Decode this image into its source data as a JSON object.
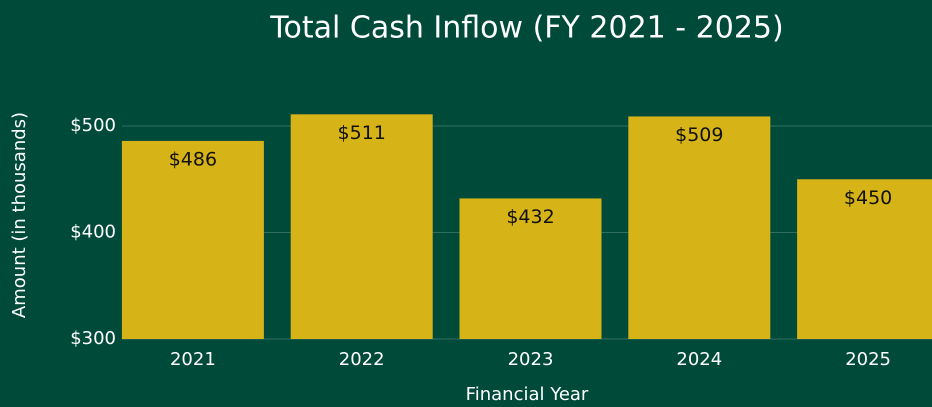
{
  "chart_data": {
    "type": "bar",
    "title": "Total Cash Inflow (FY 2021 - 2025)",
    "x_label": "Financial Year",
    "y_label": "Amount (in thousands)",
    "categories": [
      "2021",
      "2022",
      "2023",
      "2024",
      "2025"
    ],
    "values": [
      486,
      511,
      432,
      509,
      450
    ],
    "value_labels": [
      "$486",
      "$511",
      "$432",
      "$509",
      "$450"
    ],
    "color": "#d6b316",
    "ylim": [
      300,
      522
    ],
    "yticks": [
      {
        "value": 300,
        "label": "$300"
      },
      {
        "value": 400,
        "label": "$400"
      },
      {
        "value": 500,
        "label": "$500"
      }
    ],
    "grid": true
  }
}
